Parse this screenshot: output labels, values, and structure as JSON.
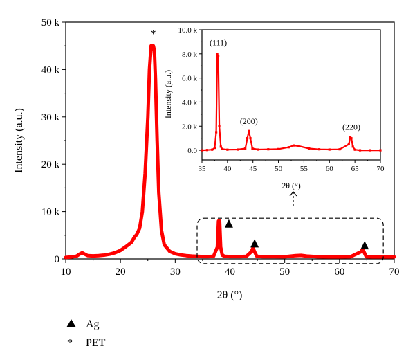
{
  "chart_data": [
    {
      "type": "line",
      "xlabel": "2θ (°)",
      "ylabel": "Intensity (a.u.)",
      "xlim": [
        10,
        70
      ],
      "ylim": [
        0,
        50000
      ],
      "xticks": [
        "10",
        "20",
        "30",
        "40",
        "50",
        "60",
        "70"
      ],
      "yticks": [
        "0",
        "10 k",
        "20 k",
        "30 k",
        "40 k",
        "50 k"
      ],
      "series": [
        {
          "color": "#ff0000",
          "x": [
            10,
            11,
            12,
            12.5,
            13,
            13.5,
            14,
            15,
            16,
            17,
            18,
            19,
            20,
            21,
            22,
            22.5,
            23,
            23.5,
            24,
            24.5,
            25,
            25.3,
            25.6,
            25.8,
            26,
            26.2,
            26.4,
            26.7,
            27,
            27.5,
            28,
            29,
            30,
            31,
            32,
            33,
            34,
            35,
            36,
            37,
            37.7,
            37.9,
            38.1,
            38.3,
            38.6,
            39,
            40,
            41,
            42,
            43,
            43.9,
            44.2,
            44.5,
            44.9,
            46,
            48,
            50,
            52,
            53,
            54,
            56,
            58,
            60,
            62,
            63.9,
            64.2,
            64.5,
            64.9,
            66,
            68,
            70
          ],
          "y": [
            300,
            400,
            600,
            1000,
            1300,
            1000,
            700,
            650,
            700,
            800,
            1000,
            1300,
            1800,
            2600,
            3500,
            4500,
            5200,
            6500,
            10000,
            18000,
            30000,
            40000,
            45000,
            45000,
            45000,
            44000,
            38000,
            25000,
            14000,
            6000,
            3000,
            1600,
            1100,
            850,
            700,
            600,
            550,
            500,
            500,
            550,
            2500,
            8000,
            8000,
            2500,
            800,
            550,
            500,
            500,
            500,
            550,
            1500,
            2300,
            1500,
            550,
            480,
            470,
            460,
            700,
            750,
            600,
            450,
            420,
            420,
            450,
            1500,
            2000,
            1400,
            450,
            420,
            420,
            420
          ]
        }
      ],
      "annotations": [
        {
          "marker": "asterisk",
          "text": "*",
          "x": 26,
          "y": 47500
        },
        {
          "marker": "triangle",
          "x": 39.8,
          "y": 7500
        },
        {
          "marker": "triangle",
          "x": 44.5,
          "y": 3300
        },
        {
          "marker": "triangle",
          "x": 64.6,
          "y": 2900
        }
      ],
      "highlight_box": {
        "x": [
          34,
          68
        ],
        "y": [
          -1000,
          8600
        ]
      },
      "grid": false
    },
    {
      "type": "line",
      "xlabel": "2θ (°)",
      "ylabel": "Intensity (a.u.)",
      "xlim": [
        35,
        70
      ],
      "ylim": [
        -800,
        10000
      ],
      "xticks": [
        "35",
        "40",
        "45",
        "50",
        "55",
        "60",
        "65",
        "70"
      ],
      "yticks": [
        "0.0",
        "2.0 k",
        "4.0 k",
        "6.0 k",
        "8.0 k",
        "10.0 k"
      ],
      "series": [
        {
          "color": "#ff0000",
          "x": [
            35,
            36,
            37,
            37.5,
            37.8,
            38,
            38.2,
            38.4,
            38.7,
            39,
            40,
            42,
            43.5,
            43.9,
            44.2,
            44.5,
            44.9,
            46,
            48,
            50,
            52,
            53,
            54,
            56,
            58,
            60,
            62,
            63.8,
            64.1,
            64.3,
            64.6,
            65,
            66,
            68,
            70
          ],
          "y": [
            0,
            20,
            50,
            200,
            1500,
            8000,
            7800,
            2000,
            300,
            100,
            50,
            60,
            150,
            1000,
            1600,
            1000,
            150,
            60,
            80,
            100,
            250,
            400,
            350,
            150,
            80,
            60,
            80,
            500,
            1100,
            1000,
            300,
            50,
            0,
            0,
            0
          ]
        }
      ],
      "peak_labels": [
        {
          "text": "(111)",
          "x": 38.2,
          "y": 8700
        },
        {
          "text": "(200)",
          "x": 44.2,
          "y": 2200
        },
        {
          "text": "(220)",
          "x": 64.3,
          "y": 1700
        }
      ],
      "grid": false
    }
  ],
  "legend": [
    {
      "marker": "triangle",
      "label": "Ag"
    },
    {
      "marker": "asterisk",
      "label": "PET"
    }
  ]
}
